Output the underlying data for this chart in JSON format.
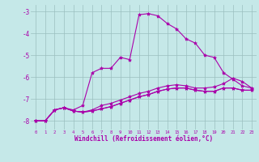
{
  "bg_color": "#c5e8e8",
  "grid_color": "#9bbfbf",
  "line_color": "#aa00aa",
  "marker": "*",
  "xlabel": "Windchill (Refroidissement éolien,°C)",
  "xlim": [
    -0.5,
    23.5
  ],
  "ylim": [
    -8.4,
    -2.7
  ],
  "yticks": [
    -8,
    -7,
    -6,
    -5,
    -4,
    -3
  ],
  "xticks": [
    0,
    1,
    2,
    3,
    4,
    5,
    6,
    7,
    8,
    9,
    10,
    11,
    12,
    13,
    14,
    15,
    16,
    17,
    18,
    19,
    20,
    21,
    22,
    23
  ],
  "series": [
    [
      -8.0,
      -8.0,
      -7.5,
      -7.4,
      -7.5,
      -7.3,
      -5.8,
      -5.6,
      -5.6,
      -5.1,
      -5.2,
      -3.15,
      -3.1,
      -3.2,
      -3.55,
      -3.8,
      -4.25,
      -4.45,
      -5.0,
      -5.1,
      -5.8,
      -6.1,
      -6.4,
      -6.5
    ],
    [
      -8.0,
      -8.0,
      -7.5,
      -7.4,
      -7.55,
      -7.6,
      -7.5,
      -7.3,
      -7.2,
      -7.05,
      -6.9,
      -6.75,
      -6.65,
      -6.5,
      -6.4,
      -6.35,
      -6.4,
      -6.5,
      -6.5,
      -6.45,
      -6.3,
      -6.05,
      -6.2,
      -6.5
    ],
    [
      -8.0,
      -8.0,
      -7.5,
      -7.4,
      -7.55,
      -7.6,
      -7.55,
      -7.45,
      -7.35,
      -7.2,
      -7.05,
      -6.9,
      -6.8,
      -6.65,
      -6.55,
      -6.5,
      -6.5,
      -6.6,
      -6.65,
      -6.65,
      -6.5,
      -6.5,
      -6.6,
      -6.6
    ],
    [
      -8.0,
      -8.0,
      -7.5,
      -7.4,
      -7.55,
      -7.6,
      -7.55,
      -7.45,
      -7.35,
      -7.2,
      -7.05,
      -6.9,
      -6.8,
      -6.65,
      -6.55,
      -6.5,
      -6.5,
      -6.6,
      -6.65,
      -6.65,
      -6.5,
      -6.5,
      -6.6,
      -6.6
    ]
  ]
}
